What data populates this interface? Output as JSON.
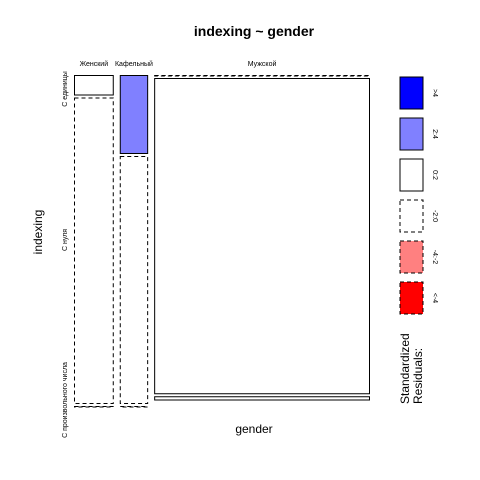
{
  "chart_data": {
    "type": "mosaic",
    "title": "indexing ~ gender",
    "xlabel": "gender",
    "ylabel": "indexing",
    "x_categories": [
      "Женский",
      "Кафельный",
      "Мужской"
    ],
    "y_categories": [
      "С единицы",
      "С нуля",
      "С произвольного числа"
    ],
    "cells": [
      {
        "gender": "Женский",
        "indexing": "С единицы",
        "proportion": 0.06,
        "residual_class": "0:2"
      },
      {
        "gender": "Женский",
        "indexing": "С нуля",
        "proportion": 0.94,
        "residual_class": "-2:0"
      },
      {
        "gender": "Женский",
        "indexing": "С произвольного числа",
        "proportion": 0.0,
        "residual_class": "-2:0"
      },
      {
        "gender": "Кафельный",
        "indexing": "С единицы",
        "proportion": 0.24,
        "residual_class": "2:4"
      },
      {
        "gender": "Кафельный",
        "indexing": "С нуля",
        "proportion": 0.76,
        "residual_class": "-2:0"
      },
      {
        "gender": "Кафельный",
        "indexing": "С произвольного числа",
        "proportion": 0.0,
        "residual_class": "-2:0"
      },
      {
        "gender": "Мужской",
        "indexing": "С единицы",
        "proportion": 0.0,
        "residual_class": "-2:0"
      },
      {
        "gender": "Мужской",
        "indexing": "С нуля",
        "proportion": 0.97,
        "residual_class": "0:2"
      },
      {
        "gender": "Мужской",
        "indexing": "С произвольного числа",
        "proportion": 0.01,
        "residual_class": "0:2"
      }
    ],
    "column_widths": [
      0.14,
      0.1,
      0.76
    ],
    "legend": {
      "title_line1": "Standardized",
      "title_line2": "Residuals:",
      "placement": "right",
      "entries": [
        {
          "label": ">4",
          "color": "#0000ff",
          "dashed": false
        },
        {
          "label": "2:4",
          "color": "#8080ff",
          "dashed": false
        },
        {
          "label": "0:2",
          "color": "#ffffff",
          "dashed": false
        },
        {
          "label": "-2:0",
          "color": "#ffffff",
          "dashed": true
        },
        {
          "label": "-4:-2",
          "color": "#ff8080",
          "dashed": true
        },
        {
          "label": "<-4",
          "color": "#ff0000",
          "dashed": true
        }
      ]
    }
  }
}
